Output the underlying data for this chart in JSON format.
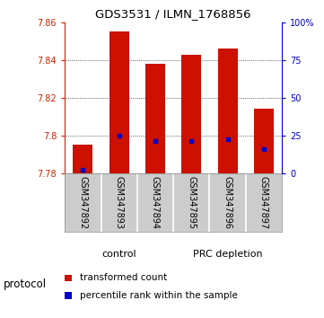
{
  "title": "GDS3531 / ILMN_1768856",
  "samples": [
    "GSM347892",
    "GSM347893",
    "GSM347894",
    "GSM347895",
    "GSM347896",
    "GSM347897"
  ],
  "bar_tops": [
    7.795,
    7.855,
    7.838,
    7.843,
    7.846,
    7.814
  ],
  "bar_base": 7.78,
  "blue_positions": [
    7.782,
    7.8,
    7.797,
    7.797,
    7.798,
    7.793
  ],
  "ylim": [
    7.78,
    7.86
  ],
  "yticks_left": [
    7.78,
    7.8,
    7.82,
    7.84,
    7.86
  ],
  "yticks_right": [
    0,
    25,
    50,
    75,
    100
  ],
  "yticks_right_labels": [
    "0",
    "25",
    "50",
    "75",
    "100%"
  ],
  "bar_color": "#cc1100",
  "blue_color": "#0000cc",
  "groups": [
    {
      "label": "control",
      "indices": [
        0,
        1,
        2
      ],
      "color": "#aaeea0"
    },
    {
      "label": "PRC depletion",
      "indices": [
        3,
        4,
        5
      ],
      "color": "#44dd44"
    }
  ],
  "sample_bg": "#cccccc",
  "protocol_label": "protocol",
  "background_color": "#ffffff",
  "plot_bg": "#ffffff",
  "bar_width": 0.55,
  "left_axis_color": "#cc2200",
  "right_axis_color": "#0000cc",
  "legend_items": [
    {
      "color": "#cc1100",
      "label": "transformed count"
    },
    {
      "color": "#0000cc",
      "label": "percentile rank within the sample"
    }
  ]
}
